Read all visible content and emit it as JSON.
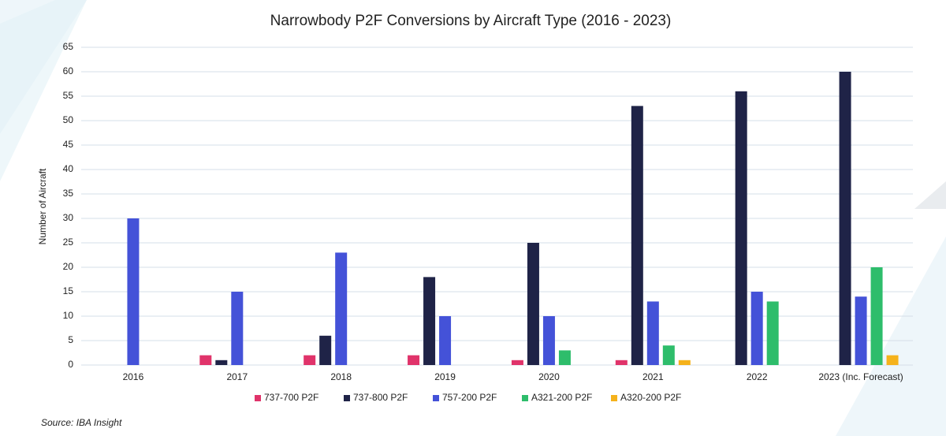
{
  "chart_data": {
    "type": "bar",
    "title": "Narrowbody P2F Conversions by Aircraft Type (2016 - 2023)",
    "y_label": "Number of Aircraft",
    "source": "Source: IBA Insight",
    "categories": [
      "2016",
      "2017",
      "2018",
      "2019",
      "2020",
      "2021",
      "2022",
      "2023 (Inc. Forecast)"
    ],
    "series": [
      {
        "name": "737-700 P2F",
        "color": "#e0336a",
        "values": [
          0,
          2,
          2,
          2,
          1,
          1,
          0,
          0
        ]
      },
      {
        "name": "737-800 P2F",
        "color": "#1f2347",
        "values": [
          0,
          1,
          6,
          18,
          25,
          53,
          56,
          60
        ]
      },
      {
        "name": "757-200 P2F",
        "color": "#4452d8",
        "values": [
          30,
          15,
          23,
          10,
          10,
          13,
          15,
          14
        ]
      },
      {
        "name": "A321-200 P2F",
        "color": "#2ebd6b",
        "values": [
          0,
          0,
          0,
          0,
          3,
          4,
          13,
          20
        ]
      },
      {
        "name": "A320-200 P2F",
        "color": "#f5b21b",
        "values": [
          0,
          0,
          0,
          0,
          0,
          1,
          0,
          2
        ]
      }
    ],
    "ylim": [
      0,
      65
    ],
    "yticks": [
      0,
      5,
      10,
      15,
      20,
      25,
      30,
      35,
      40,
      45,
      50,
      55,
      60,
      65
    ],
    "grid": true,
    "legend": "bottom"
  }
}
